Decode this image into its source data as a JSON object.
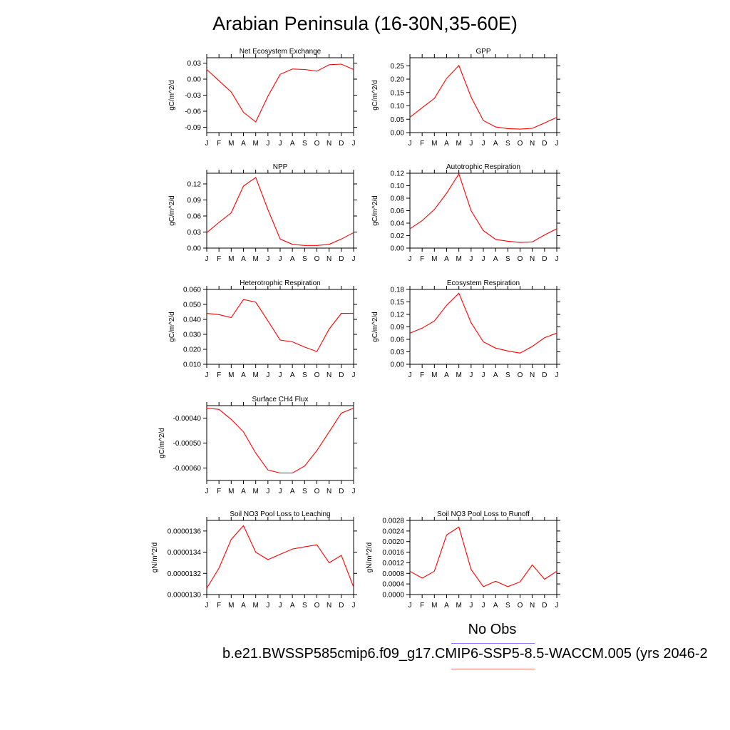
{
  "page_title": "Arabian Peninsula (16-30N,35-60E)",
  "legend": {
    "no_obs_label": "No Obs",
    "case_label": "b.e21.BWSSP585cmip6.f09_g17.CMIP6-SSP5-8.5-WACCM.005 (yrs 2046-2",
    "obs_color": "#8080ff",
    "case_color": "#ff8080"
  },
  "colors": {
    "series": "#ff0000",
    "axis": "#000000"
  },
  "chart_data": [
    {
      "type": "line",
      "title": "Net Ecosystem Exchange",
      "ylabel": "gC/m^2/d",
      "categories": [
        "J",
        "F",
        "M",
        "A",
        "M",
        "J",
        "J",
        "A",
        "S",
        "O",
        "N",
        "D",
        "J"
      ],
      "ylim": [
        -0.1,
        0.04
      ],
      "yticks": [
        0.03,
        0.0,
        -0.03,
        -0.06,
        -0.09
      ],
      "ytick_labels": [
        "0.03",
        "0.00",
        "-0.03",
        "-0.06",
        "-0.09"
      ],
      "series": [
        {
          "values": [
            0.018,
            -0.003,
            -0.024,
            -0.062,
            -0.08,
            -0.032,
            0.009,
            0.019,
            0.018,
            0.015,
            0.027,
            0.028,
            0.018
          ]
        }
      ]
    },
    {
      "type": "line",
      "title": "GPP",
      "ylabel": "gC/m^2/d",
      "categories": [
        "J",
        "F",
        "M",
        "A",
        "M",
        "J",
        "J",
        "A",
        "S",
        "O",
        "N",
        "D",
        "J"
      ],
      "ylim": [
        0.0,
        0.28
      ],
      "yticks": [
        0.25,
        0.2,
        0.15,
        0.1,
        0.05,
        0.0
      ],
      "ytick_labels": [
        "0.25",
        "0.20",
        "0.15",
        "0.10",
        "0.05",
        "0.00"
      ],
      "series": [
        {
          "values": [
            0.057,
            0.093,
            0.128,
            0.203,
            0.251,
            0.133,
            0.045,
            0.021,
            0.015,
            0.013,
            0.016,
            0.036,
            0.057
          ]
        }
      ]
    },
    {
      "type": "line",
      "title": "NPP",
      "ylabel": "gC/m^2/d",
      "categories": [
        "J",
        "F",
        "M",
        "A",
        "M",
        "J",
        "J",
        "A",
        "S",
        "O",
        "N",
        "D",
        "J"
      ],
      "ylim": [
        0.0,
        0.14
      ],
      "yticks": [
        0.12,
        0.09,
        0.06,
        0.03,
        0.0
      ],
      "ytick_labels": [
        "0.12",
        "0.09",
        "0.06",
        "0.03",
        "0.00"
      ],
      "series": [
        {
          "values": [
            0.029,
            0.048,
            0.066,
            0.116,
            0.132,
            0.072,
            0.017,
            0.007,
            0.005,
            0.005,
            0.007,
            0.017,
            0.029
          ]
        }
      ]
    },
    {
      "type": "line",
      "title": "Autotrophic Respiration",
      "ylabel": "gC/m^2/d",
      "categories": [
        "J",
        "F",
        "M",
        "A",
        "M",
        "J",
        "J",
        "A",
        "S",
        "O",
        "N",
        "D",
        "J"
      ],
      "ylim": [
        0.0,
        0.12
      ],
      "yticks": [
        0.12,
        0.1,
        0.08,
        0.06,
        0.04,
        0.02,
        0.0
      ],
      "ytick_labels": [
        "0.12",
        "0.10",
        "0.08",
        "0.06",
        "0.04",
        "0.02",
        "0.00"
      ],
      "series": [
        {
          "values": [
            0.031,
            0.044,
            0.062,
            0.088,
            0.119,
            0.06,
            0.028,
            0.014,
            0.011,
            0.009,
            0.01,
            0.021,
            0.031
          ]
        }
      ]
    },
    {
      "type": "line",
      "title": "Heterotrophic Respiration",
      "ylabel": "gC/m^2/d",
      "categories": [
        "J",
        "F",
        "M",
        "A",
        "M",
        "J",
        "J",
        "A",
        "S",
        "O",
        "N",
        "D",
        "J"
      ],
      "ylim": [
        0.01,
        0.06
      ],
      "yticks": [
        0.06,
        0.05,
        0.04,
        0.03,
        0.02,
        0.01
      ],
      "ytick_labels": [
        "0.060",
        "0.050",
        "0.040",
        "0.030",
        "0.020",
        "0.010"
      ],
      "series": [
        {
          "values": [
            0.044,
            0.0432,
            0.0412,
            0.0533,
            0.0515,
            0.039,
            0.0262,
            0.025,
            0.0215,
            0.0185,
            0.0335,
            0.044,
            0.044
          ]
        }
      ]
    },
    {
      "type": "line",
      "title": "Ecosystem Respiration",
      "ylabel": "gC/m^2/d",
      "categories": [
        "J",
        "F",
        "M",
        "A",
        "M",
        "J",
        "J",
        "A",
        "S",
        "O",
        "N",
        "D",
        "J"
      ],
      "ylim": [
        0.0,
        0.18
      ],
      "yticks": [
        0.18,
        0.15,
        0.12,
        0.09,
        0.06,
        0.03,
        0.0
      ],
      "ytick_labels": [
        "0.18",
        "0.15",
        "0.12",
        "0.09",
        "0.06",
        "0.03",
        "0.00"
      ],
      "series": [
        {
          "values": [
            0.075,
            0.087,
            0.104,
            0.142,
            0.171,
            0.1,
            0.054,
            0.039,
            0.032,
            0.027,
            0.043,
            0.064,
            0.075
          ]
        }
      ]
    },
    {
      "type": "line",
      "title": "Surface CH4 Flux",
      "ylabel": "gC/m^2/d",
      "categories": [
        "J",
        "F",
        "M",
        "A",
        "M",
        "J",
        "J",
        "A",
        "S",
        "O",
        "N",
        "D",
        "J"
      ],
      "ylim": [
        -0.00065,
        -0.00035
      ],
      "yticks": [
        -0.0004,
        -0.0005,
        -0.0006
      ],
      "ytick_labels": [
        "-0.00040",
        "-0.00050",
        "-0.00060"
      ],
      "series": [
        {
          "values": [
            -0.00036,
            -0.000365,
            -0.000405,
            -0.000455,
            -0.00054,
            -0.000608,
            -0.00062,
            -0.00062,
            -0.000592,
            -0.00053,
            -0.000455,
            -0.00038,
            -0.00036
          ]
        }
      ]
    },
    {
      "type": "line",
      "title": "Soil NO3 Pool Loss to Leaching",
      "ylabel": "gN/m^2/d",
      "categories": [
        "J",
        "F",
        "M",
        "A",
        "M",
        "J",
        "J",
        "A",
        "S",
        "O",
        "N",
        "D",
        "J"
      ],
      "ylim": [
        1.3e-05,
        1.37e-05
      ],
      "yticks": [
        1.36e-05,
        1.34e-05,
        1.32e-05,
        1.3e-05
      ],
      "ytick_labels": [
        "0.0000136",
        "0.0000134",
        "0.0000132",
        "0.0000130"
      ],
      "series": [
        {
          "values": [
            1.306e-05,
            1.325e-05,
            1.352e-05,
            1.365e-05,
            1.34e-05,
            1.333e-05,
            1.338e-05,
            1.343e-05,
            1.345e-05,
            1.347e-05,
            1.33e-05,
            1.337e-05,
            1.307e-05
          ]
        }
      ]
    },
    {
      "type": "line",
      "title": "Soil NO3 Pool Loss to Runoff",
      "ylabel": "gN/m^2/d",
      "categories": [
        "J",
        "F",
        "M",
        "A",
        "M",
        "J",
        "J",
        "A",
        "S",
        "O",
        "N",
        "D",
        "J"
      ],
      "ylim": [
        0.0,
        0.0028
      ],
      "yticks": [
        0.0028,
        0.0024,
        0.002,
        0.0016,
        0.0012,
        0.0008,
        0.0004,
        0.0
      ],
      "ytick_labels": [
        "0.0028",
        "0.0024",
        "0.0020",
        "0.0016",
        "0.0012",
        "0.0008",
        "0.0004",
        "0.0000"
      ],
      "series": [
        {
          "values": [
            0.00088,
            0.00062,
            0.00088,
            0.00225,
            0.00255,
            0.00095,
            0.0003,
            0.0005,
            0.0003,
            0.00048,
            0.00112,
            0.00058,
            0.00088
          ]
        }
      ]
    }
  ]
}
